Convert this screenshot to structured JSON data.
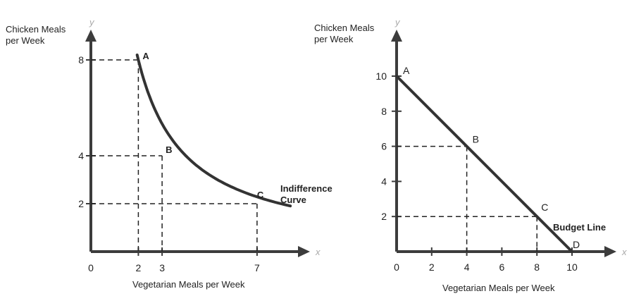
{
  "chart_data": [
    {
      "type": "line",
      "title": "",
      "ylabel_line1": "Chicken Meals",
      "ylabel_line2": "per Week",
      "xlabel": "Vegetarian Meals per Week",
      "x_axis_letter": "x",
      "y_axis_letter": "y",
      "x_ticks": [
        0,
        2,
        3,
        7
      ],
      "y_ticks": [
        8,
        4,
        2
      ],
      "xlim": [
        0,
        9.3
      ],
      "ylim": [
        0,
        10
      ],
      "series": [
        {
          "name": "Indifference Curve",
          "name_line1": "Indifference",
          "name_line2": "Curve",
          "kind": "curve",
          "curve_k": 16,
          "x_start": 1.95,
          "x_end": 8.4
        }
      ],
      "points": [
        {
          "label": "A",
          "x": 2,
          "y": 8
        },
        {
          "label": "B",
          "x": 3,
          "y": 4
        },
        {
          "label": "C",
          "x": 7,
          "y": 2
        }
      ],
      "line_color": "#333333",
      "axis_color": "#3c3c3c",
      "guide_color": "#222222"
    },
    {
      "type": "line",
      "title": "",
      "ylabel_line1": "Chicken Meals",
      "ylabel_line2": "per Week",
      "xlabel": "Vegetarian Meals per Week",
      "x_axis_letter": "x",
      "y_axis_letter": "y",
      "x_ticks": [
        0,
        2,
        4,
        6,
        8,
        10
      ],
      "y_ticks": [
        10,
        8,
        6,
        4,
        2
      ],
      "xlim": [
        0,
        12.8
      ],
      "ylim": [
        0,
        12
      ],
      "series": [
        {
          "name": "Budget Line",
          "kind": "line",
          "x": [
            0,
            10
          ],
          "y": [
            10,
            0
          ]
        }
      ],
      "points": [
        {
          "label": "A",
          "x": 0,
          "y": 10
        },
        {
          "label": "B",
          "x": 4,
          "y": 6
        },
        {
          "label": "C",
          "x": 8,
          "y": 2
        },
        {
          "label": "D",
          "x": 10,
          "y": 0
        }
      ],
      "guides": [
        {
          "x": 4,
          "y": 6
        },
        {
          "x": 8,
          "y": 2
        }
      ],
      "line_color": "#333333",
      "axis_color": "#3c3c3c",
      "guide_color": "#222222"
    }
  ]
}
